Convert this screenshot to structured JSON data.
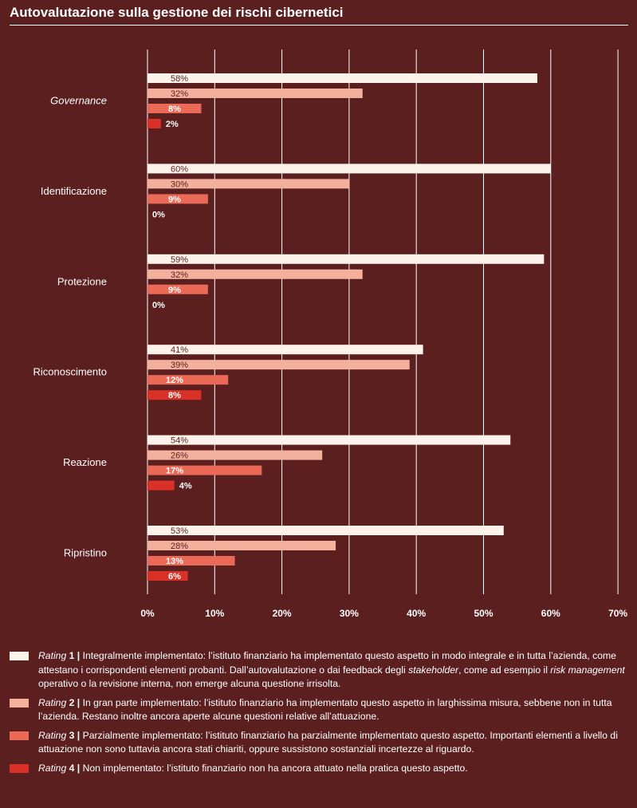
{
  "title": "Autovalutazione sulla gestione dei rischi cibernetici",
  "colors": {
    "background": "#5c1f1f",
    "grid": "#ffffff",
    "text": "#ffffff",
    "bar_text": "#5c1f1f",
    "rating1": "#fdf3ea",
    "rating2": "#f3b09d",
    "rating3": "#ea6a57",
    "rating4": "#d93128"
  },
  "chart_data": {
    "type": "bar",
    "orientation": "horizontal",
    "categories": [
      "Governance",
      "Identificazione",
      "Protezione",
      "Riconoscimento",
      "Reazione",
      "Ripristino"
    ],
    "category_italic": [
      true,
      false,
      false,
      false,
      false,
      false
    ],
    "series": [
      {
        "name": "Rating 1",
        "values": [
          58,
          60,
          59,
          41,
          54,
          53
        ]
      },
      {
        "name": "Rating 2",
        "values": [
          32,
          30,
          32,
          39,
          26,
          28
        ]
      },
      {
        "name": "Rating 3",
        "values": [
          8,
          9,
          9,
          12,
          17,
          13
        ]
      },
      {
        "name": "Rating 4",
        "values": [
          2,
          0,
          0,
          8,
          4,
          6
        ]
      }
    ],
    "value_labels": [
      [
        "58%",
        "32%",
        "8%",
        "2%"
      ],
      [
        "60%",
        "30%",
        "9%",
        "0%"
      ],
      [
        "59%",
        "32%",
        "9%",
        "0%"
      ],
      [
        "41%",
        "39%",
        "12%",
        "8%"
      ],
      [
        "54%",
        "26%",
        "17%",
        "4%"
      ],
      [
        "53%",
        "28%",
        "13%",
        "6%"
      ]
    ],
    "xlim": [
      0,
      70
    ],
    "x_ticks": [
      0,
      10,
      20,
      30,
      40,
      50,
      60,
      70
    ],
    "x_tick_labels": [
      "0%",
      "10%",
      "20%",
      "30%",
      "40%",
      "50%",
      "60%",
      "70%"
    ],
    "grid": true,
    "legend_position": "bottom"
  },
  "legend": [
    {
      "rating": "Rating",
      "num": "1 |",
      "text": " Integralmente implementato: l’istituto finanziario ha implementato questo aspetto in modo integrale e in tutta l’azienda, come attestano i corrispondenti elementi probanti. Dall’autovalutazione o dai feedback degli ",
      "em1": "stakeholder",
      "text2": ", come ad esempio il ",
      "em2": "risk management",
      "text3": " operativo o la revisione interna, non emerge alcuna questione irrisolta."
    },
    {
      "rating": "Rating",
      "num": "2 |",
      "text": " In gran parte implementato: l’istituto finanziario ha implementato questo aspetto in larghissima misura, sebbene non in tutta l’azienda. Restano inoltre ancora aperte alcune questioni relative all’attuazione."
    },
    {
      "rating": "Rating",
      "num": "3 |",
      "text": " Parzialmente implementato: l’istituto finanziario ha parzialmente implementato questo aspetto. Importanti elementi a livello di attuazione non sono tuttavia ancora stati chiariti, oppure sussistono sostanziali incertezze al riguardo."
    },
    {
      "rating": "Rating",
      "num": "4 |",
      "text": " Non implementato: l’istituto finanziario non ha ancora attuato nella pratica questo aspetto."
    }
  ]
}
